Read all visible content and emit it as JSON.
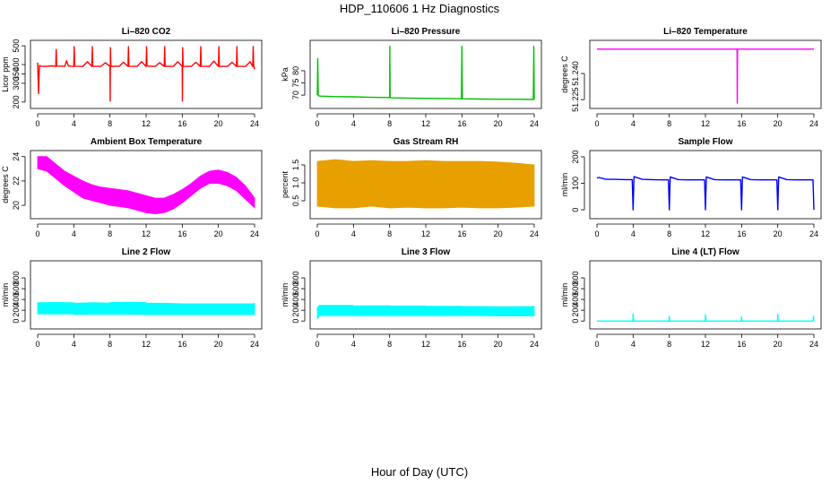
{
  "figure": {
    "title": "HDP_110606  1 Hz Diagnostics",
    "xlabel": "Hour of Day (UTC)"
  },
  "chart_data": [
    {
      "type": "line",
      "title": "Li–820 CO2",
      "ylabel": "Licor ppm",
      "color": "#ff0000",
      "xlim": [
        0,
        24
      ],
      "ylim": [
        185,
        510
      ],
      "xticks": [
        "0",
        "4",
        "8",
        "12",
        "16",
        "20",
        "24"
      ],
      "yticks": [
        {
          "v": 200,
          "label": "200"
        },
        {
          "v": 300,
          "label": "300"
        },
        {
          "v": 350,
          "label": "350"
        },
        {
          "v": 400,
          "label": "400"
        },
        {
          "v": 500,
          "label": "500"
        }
      ],
      "x": [
        0.0,
        0.1,
        0.2,
        0.3,
        0.5,
        1.0,
        1.5,
        2.0,
        2.05,
        2.1,
        3.0,
        3.2,
        3.4,
        4.0,
        4.05,
        4.1,
        5.0,
        5.5,
        6.0,
        6.05,
        6.1,
        7.0,
        7.5,
        8.0,
        8.02,
        8.05,
        8.1,
        9.0,
        9.5,
        10.0,
        10.05,
        10.1,
        11.0,
        11.5,
        12.0,
        12.05,
        12.1,
        13.0,
        13.5,
        14.0,
        14.05,
        14.1,
        15.0,
        15.5,
        16.0,
        16.02,
        16.05,
        16.1,
        17.0,
        17.5,
        18.0,
        18.05,
        18.1,
        19.0,
        19.5,
        20.0,
        20.05,
        20.1,
        21.0,
        21.5,
        22.0,
        22.05,
        22.1,
        23.0,
        23.5,
        23.8,
        23.85,
        23.9,
        24.0
      ],
      "values": [
        410,
        245,
        395,
        392,
        390,
        390,
        393,
        390,
        480,
        392,
        391,
        420,
        392,
        390,
        495,
        391,
        390,
        415,
        390,
        495,
        391,
        390,
        410,
        390,
        205,
        490,
        391,
        390,
        412,
        390,
        495,
        391,
        390,
        415,
        390,
        495,
        392,
        390,
        410,
        390,
        495,
        390,
        390,
        415,
        390,
        205,
        490,
        390,
        390,
        412,
        390,
        495,
        391,
        390,
        418,
        390,
        495,
        390,
        390,
        412,
        390,
        495,
        391,
        390,
        415,
        390,
        495,
        392,
        375
      ]
    },
    {
      "type": "line",
      "title": "Li–820 Pressure",
      "ylabel": "kPa",
      "color": "#00c000",
      "xlim": [
        0,
        24
      ],
      "ylim": [
        66,
        91
      ],
      "xticks": [
        "0",
        "4",
        "8",
        "12",
        "16",
        "20",
        "24"
      ],
      "yticks": [
        {
          "v": 70,
          "label": "70"
        },
        {
          "v": 75,
          "label": "75"
        },
        {
          "v": 80,
          "label": "80"
        }
      ],
      "x": [
        0.0,
        0.05,
        0.1,
        0.3,
        2.0,
        4.0,
        6.0,
        8.0,
        8.02,
        8.05,
        10.0,
        12.0,
        14.0,
        15.95,
        16.0,
        16.05,
        18.0,
        20.0,
        22.0,
        23.9,
        23.95,
        24.0
      ],
      "values": [
        70,
        85,
        69.8,
        69.6,
        69.4,
        69.3,
        69.1,
        69.0,
        90,
        68.9,
        68.8,
        68.7,
        68.6,
        68.5,
        90,
        68.5,
        68.4,
        68.3,
        68.3,
        68.2,
        90,
        68.2
      ]
    },
    {
      "type": "line",
      "title": "Li–820 Temperature",
      "ylabel": "degrees C",
      "color": "#ff00ff",
      "xlim": [
        0,
        24
      ],
      "ylim": [
        51.222,
        51.257
      ],
      "xticks": [
        "0",
        "4",
        "8",
        "12",
        "16",
        "20",
        "24"
      ],
      "yticks": [
        {
          "v": 51.225,
          "label": "51.225"
        },
        {
          "v": 51.24,
          "label": "51.240"
        }
      ],
      "x": [
        0.0,
        15.5,
        15.52,
        15.55,
        24.0
      ],
      "values": [
        51.254,
        51.254,
        51.223,
        51.254,
        51.254
      ]
    },
    {
      "type": "area",
      "title": "Ambient Box Temperature",
      "ylabel": "degrees C",
      "color": "#ff00ff",
      "xlim": [
        0,
        24
      ],
      "ylim": [
        19.2,
        24.2
      ],
      "xticks": [
        "0",
        "4",
        "8",
        "12",
        "16",
        "20",
        "24"
      ],
      "yticks": [
        {
          "v": 20,
          "label": "20"
        },
        {
          "v": 22,
          "label": "22"
        },
        {
          "v": 24,
          "label": "24"
        }
      ],
      "x": [
        0,
        1,
        2,
        3,
        4,
        5,
        6,
        7,
        8,
        9,
        10,
        11,
        12,
        13,
        14,
        15,
        16,
        17,
        18,
        19,
        20,
        21,
        22,
        23,
        24
      ],
      "low": [
        23.0,
        22.8,
        22.2,
        21.6,
        21.1,
        20.6,
        20.4,
        20.2,
        20.0,
        19.9,
        19.8,
        19.6,
        19.4,
        19.3,
        19.4,
        19.7,
        20.2,
        20.8,
        21.4,
        21.8,
        21.8,
        21.6,
        21.2,
        20.5,
        19.8
      ],
      "high": [
        24.0,
        24.0,
        23.4,
        22.8,
        22.4,
        22.0,
        21.7,
        21.5,
        21.4,
        21.3,
        21.2,
        21.0,
        20.8,
        20.6,
        20.6,
        20.9,
        21.3,
        21.8,
        22.4,
        22.8,
        22.9,
        22.7,
        22.3,
        21.6,
        20.6
      ]
    },
    {
      "type": "area",
      "title": "Gas Stream RH",
      "ylabel": "percent",
      "color": "#e8a000",
      "xlim": [
        0,
        24
      ],
      "ylim": [
        0.1,
        1.8
      ],
      "xticks": [
        "0",
        "4",
        "8",
        "12",
        "16",
        "20",
        "24"
      ],
      "yticks": [
        {
          "v": 0.5,
          "label": "0.5"
        },
        {
          "v": 1.0,
          "label": "1.0"
        },
        {
          "v": 1.5,
          "label": "1.5"
        }
      ],
      "x": [
        0,
        2,
        4,
        6,
        8,
        10,
        12,
        14,
        16,
        18,
        20,
        22,
        24
      ],
      "low": [
        0.35,
        0.3,
        0.3,
        0.35,
        0.3,
        0.32,
        0.3,
        0.3,
        0.32,
        0.3,
        0.3,
        0.32,
        0.35
      ],
      "high": [
        1.6,
        1.65,
        1.6,
        1.62,
        1.6,
        1.6,
        1.62,
        1.6,
        1.6,
        1.6,
        1.58,
        1.55,
        1.5
      ]
    },
    {
      "type": "line",
      "title": "Sample Flow",
      "ylabel": "ml/min",
      "color": "#0000ff",
      "xlim": [
        0,
        24
      ],
      "ylim": [
        -20,
        210
      ],
      "xticks": [
        "0",
        "4",
        "8",
        "12",
        "16",
        "20",
        "24"
      ],
      "yticks": [
        {
          "v": 0,
          "label": "0"
        },
        {
          "v": 100,
          "label": "100"
        },
        {
          "v": 200,
          "label": "200"
        }
      ],
      "x": [
        0.0,
        0.2,
        1.0,
        2.0,
        3.0,
        3.9,
        4.0,
        4.1,
        5.0,
        6.0,
        7.0,
        7.9,
        8.0,
        8.1,
        9.0,
        10.0,
        11.0,
        11.9,
        12.0,
        12.1,
        13.0,
        14.0,
        15.0,
        15.9,
        16.0,
        16.1,
        17.0,
        18.0,
        19.0,
        19.9,
        20.0,
        20.1,
        21.0,
        22.0,
        23.0,
        23.9,
        24.0
      ],
      "values": [
        120,
        122,
        115,
        115,
        114,
        114,
        0,
        125,
        115,
        114,
        113,
        113,
        0,
        124,
        114,
        113,
        113,
        113,
        0,
        124,
        114,
        113,
        113,
        113,
        0,
        124,
        114,
        113,
        113,
        113,
        0,
        124,
        114,
        113,
        113,
        113,
        0
      ]
    },
    {
      "type": "area",
      "title": "Line 2 Flow",
      "ylabel": "ml/min",
      "color": "#00ffff",
      "xlim": [
        0,
        24
      ],
      "ylim": [
        -80,
        1050
      ],
      "xticks": [
        "0",
        "4",
        "8",
        "12",
        "16",
        "20",
        "24"
      ],
      "yticks": [
        {
          "v": 0,
          "label": "0"
        },
        {
          "v": 200,
          "label": "200"
        },
        {
          "v": 400,
          "label": "400"
        },
        {
          "v": 600,
          "label": "600"
        },
        {
          "v": 800,
          "label": "800"
        }
      ],
      "x": [
        0,
        2,
        3.9,
        4.1,
        6,
        7.9,
        8.1,
        10,
        11.9,
        12.1,
        14,
        15.9,
        16.1,
        18,
        19.9,
        20.1,
        22,
        23.9,
        24
      ],
      "low": [
        130,
        130,
        130,
        120,
        125,
        125,
        125,
        125,
        120,
        120,
        120,
        120,
        120,
        120,
        120,
        120,
        120,
        120,
        120
      ],
      "high": [
        340,
        345,
        340,
        330,
        340,
        335,
        345,
        350,
        345,
        330,
        330,
        320,
        320,
        320,
        320,
        320,
        320,
        320,
        330
      ]
    },
    {
      "type": "area",
      "title": "Line 3 Flow",
      "ylabel": "ml/min",
      "color": "#00ffff",
      "xlim": [
        0,
        24
      ],
      "ylim": [
        -80,
        1050
      ],
      "xticks": [
        "0",
        "4",
        "8",
        "12",
        "16",
        "20",
        "24"
      ],
      "yticks": [
        {
          "v": 0,
          "label": "0"
        },
        {
          "v": 200,
          "label": "200"
        },
        {
          "v": 400,
          "label": "400"
        },
        {
          "v": 600,
          "label": "600"
        },
        {
          "v": 800,
          "label": "800"
        }
      ],
      "x": [
        0,
        0.2,
        2,
        3.9,
        4.1,
        6,
        7.9,
        8.1,
        10,
        11.9,
        12.1,
        14,
        15.9,
        16.1,
        18,
        19.9,
        20.1,
        22,
        23.9,
        24
      ],
      "low": [
        30,
        100,
        100,
        100,
        100,
        100,
        100,
        100,
        100,
        100,
        100,
        100,
        100,
        100,
        100,
        95,
        95,
        95,
        95,
        95
      ],
      "high": [
        250,
        290,
        290,
        290,
        280,
        285,
        285,
        280,
        280,
        280,
        275,
        275,
        275,
        270,
        270,
        265,
        265,
        265,
        270,
        275
      ]
    },
    {
      "type": "line",
      "title": "Line 4 (LT) Flow",
      "ylabel": "ml/min",
      "color": "#00ffff",
      "xlim": [
        0,
        24
      ],
      "ylim": [
        -80,
        1050
      ],
      "xticks": [
        "0",
        "4",
        "8",
        "12",
        "16",
        "20",
        "24"
      ],
      "yticks": [
        {
          "v": 0,
          "label": "0"
        },
        {
          "v": 200,
          "label": "200"
        },
        {
          "v": 400,
          "label": "400"
        },
        {
          "v": 600,
          "label": "600"
        },
        {
          "v": 800,
          "label": "800"
        }
      ],
      "x": [
        0,
        3.98,
        4.0,
        4.05,
        7.98,
        8.0,
        8.05,
        11.98,
        12.0,
        12.05,
        15.98,
        16.0,
        16.05,
        19.98,
        20.0,
        20.05,
        23.93,
        23.95,
        24.0
      ],
      "values": [
        0,
        0,
        130,
        0,
        0,
        90,
        0,
        0,
        120,
        0,
        0,
        80,
        0,
        0,
        130,
        0,
        0,
        90,
        0
      ]
    }
  ]
}
